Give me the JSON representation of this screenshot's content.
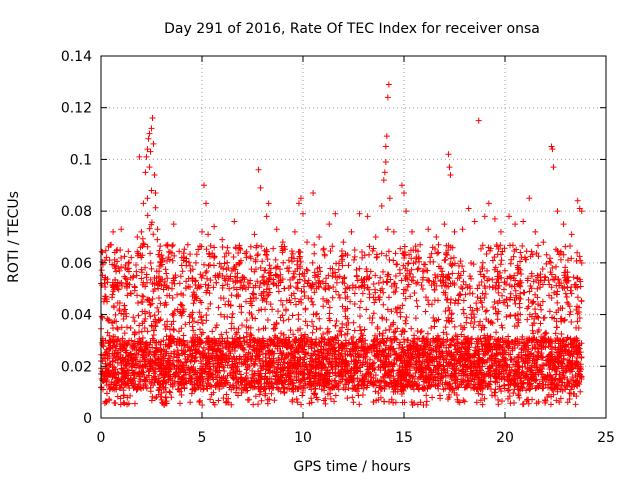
{
  "chart_data": {
    "type": "scatter",
    "title": "Day 291 of 2016, Rate Of TEC Index for receiver onsa",
    "xlabel": "GPS time / hours",
    "ylabel": "ROTI / TECUs",
    "xlim": [
      0,
      25
    ],
    "ylim": [
      0,
      0.14
    ],
    "xticks": [
      0,
      5,
      10,
      15,
      20,
      25
    ],
    "xtick_labels": [
      "0",
      "5",
      "10",
      "15",
      "20",
      "25"
    ],
    "yticks": [
      0,
      0.02,
      0.04,
      0.06,
      0.08,
      0.1,
      0.12,
      0.14
    ],
    "ytick_labels": [
      "0",
      "0.02",
      "0.04",
      "0.06",
      "0.08",
      "0.1",
      "0.12",
      "0.14"
    ],
    "grid": true,
    "marker": "+",
    "color": "#ff0000",
    "x_data_range": [
      0,
      23.8
    ],
    "dense_band": [
      0.005,
      0.055
    ],
    "series": [
      {
        "name": "ROTI",
        "points": [
          [
            0.0,
            0.052
          ],
          [
            0.1,
            0.03
          ],
          [
            0.2,
            0.061
          ],
          [
            0.3,
            0.045
          ],
          [
            0.5,
            0.067
          ],
          [
            0.6,
            0.072
          ],
          [
            0.8,
            0.065
          ],
          [
            1.0,
            0.073
          ],
          [
            1.2,
            0.058
          ],
          [
            1.5,
            0.062
          ],
          [
            1.8,
            0.07
          ],
          [
            2.0,
            0.072
          ],
          [
            2.1,
            0.083
          ],
          [
            2.2,
            0.095
          ],
          [
            2.25,
            0.101
          ],
          [
            2.3,
            0.104
          ],
          [
            2.35,
            0.108
          ],
          [
            2.4,
            0.11
          ],
          [
            2.45,
            0.103
          ],
          [
            2.5,
            0.112
          ],
          [
            2.55,
            0.116
          ],
          [
            2.6,
            0.106
          ],
          [
            2.65,
            0.094
          ],
          [
            2.7,
            0.087
          ],
          [
            2.4,
            0.097
          ],
          [
            2.5,
            0.088
          ],
          [
            2.3,
            0.085
          ],
          [
            1.9,
            0.101
          ],
          [
            2.8,
            0.073
          ],
          [
            3.0,
            0.063
          ],
          [
            3.3,
            0.067
          ],
          [
            3.6,
            0.075
          ],
          [
            4.0,
            0.062
          ],
          [
            4.3,
            0.067
          ],
          [
            4.7,
            0.06
          ],
          [
            5.0,
            0.072
          ],
          [
            5.1,
            0.09
          ],
          [
            5.2,
            0.083
          ],
          [
            5.3,
            0.071
          ],
          [
            5.6,
            0.074
          ],
          [
            6.0,
            0.069
          ],
          [
            6.3,
            0.058
          ],
          [
            6.6,
            0.076
          ],
          [
            6.9,
            0.065
          ],
          [
            7.2,
            0.062
          ],
          [
            7.6,
            0.071
          ],
          [
            7.8,
            0.096
          ],
          [
            7.9,
            0.089
          ],
          [
            8.2,
            0.078
          ],
          [
            8.3,
            0.083
          ],
          [
            8.7,
            0.073
          ],
          [
            9.0,
            0.068
          ],
          [
            9.3,
            0.061
          ],
          [
            9.6,
            0.072
          ],
          [
            9.8,
            0.083
          ],
          [
            9.9,
            0.085
          ],
          [
            10.0,
            0.079
          ],
          [
            10.2,
            0.068
          ],
          [
            10.5,
            0.087
          ],
          [
            10.8,
            0.07
          ],
          [
            11.0,
            0.065
          ],
          [
            11.3,
            0.075
          ],
          [
            11.6,
            0.079
          ],
          [
            12.0,
            0.068
          ],
          [
            12.4,
            0.072
          ],
          [
            12.8,
            0.079
          ],
          [
            13.2,
            0.078
          ],
          [
            13.6,
            0.07
          ],
          [
            13.9,
            0.082
          ],
          [
            14.0,
            0.092
          ],
          [
            14.05,
            0.095
          ],
          [
            14.1,
            0.105
          ],
          [
            14.15,
            0.109
          ],
          [
            14.2,
            0.124
          ],
          [
            14.25,
            0.129
          ],
          [
            14.1,
            0.099
          ],
          [
            14.2,
            0.073
          ],
          [
            14.3,
            0.085
          ],
          [
            14.5,
            0.072
          ],
          [
            14.9,
            0.09
          ],
          [
            15.0,
            0.087
          ],
          [
            15.1,
            0.08
          ],
          [
            15.4,
            0.072
          ],
          [
            15.8,
            0.067
          ],
          [
            16.2,
            0.073
          ],
          [
            16.6,
            0.07
          ],
          [
            17.0,
            0.075
          ],
          [
            17.2,
            0.102
          ],
          [
            17.25,
            0.097
          ],
          [
            17.3,
            0.094
          ],
          [
            17.5,
            0.072
          ],
          [
            17.9,
            0.073
          ],
          [
            18.2,
            0.081
          ],
          [
            18.5,
            0.076
          ],
          [
            18.7,
            0.115
          ],
          [
            19.0,
            0.078
          ],
          [
            19.2,
            0.083
          ],
          [
            19.5,
            0.077
          ],
          [
            19.8,
            0.072
          ],
          [
            20.2,
            0.078
          ],
          [
            20.5,
            0.075
          ],
          [
            20.9,
            0.076
          ],
          [
            21.2,
            0.085
          ],
          [
            21.5,
            0.072
          ],
          [
            21.9,
            0.068
          ],
          [
            22.3,
            0.105
          ],
          [
            22.35,
            0.104
          ],
          [
            22.4,
            0.097
          ],
          [
            22.6,
            0.08
          ],
          [
            22.9,
            0.075
          ],
          [
            23.3,
            0.071
          ],
          [
            23.6,
            0.084
          ],
          [
            23.7,
            0.081
          ],
          [
            23.8,
            0.08
          ]
        ]
      }
    ]
  }
}
